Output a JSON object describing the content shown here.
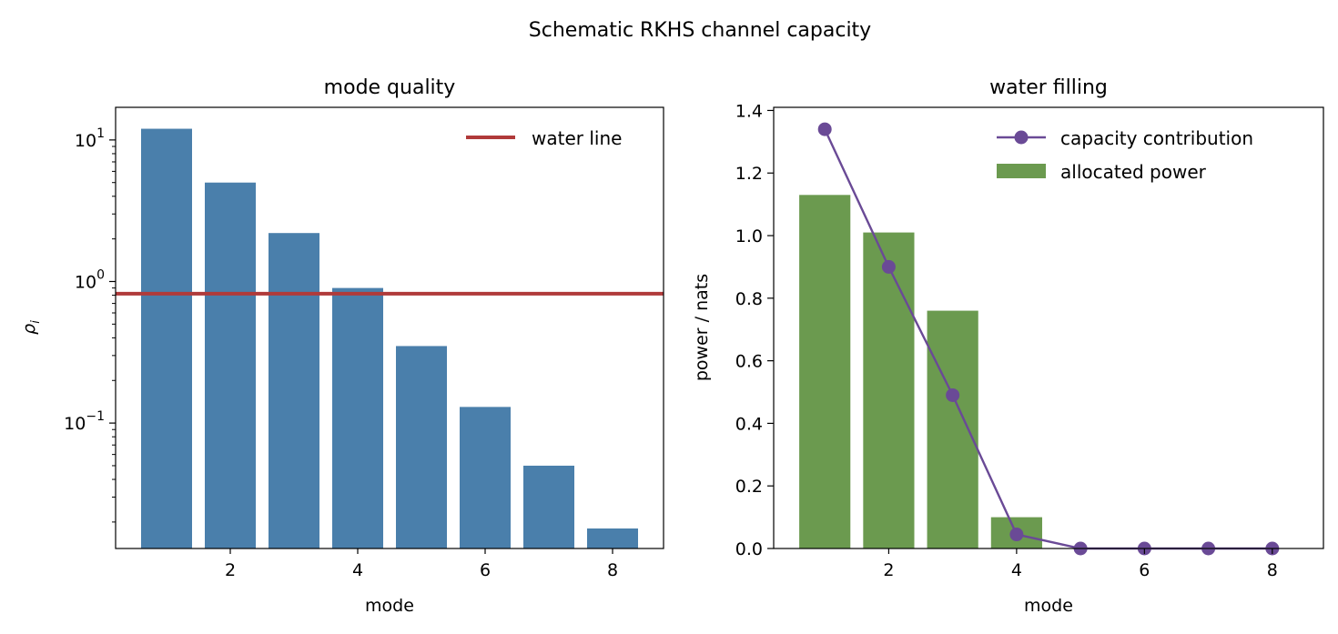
{
  "suptitle": "Schematic RKHS channel capacity",
  "colors": {
    "bar_left": "#4a7fab",
    "water_line": "#b03a3a",
    "bar_right": "#6b9a4f",
    "capacity_line": "#6a4a96"
  },
  "chart_data": [
    {
      "type": "bar",
      "title": "mode quality",
      "xlabel": "mode",
      "ylabel": "ρ",
      "ylabel_subscript": "i",
      "yscale": "log",
      "xlim": [
        0.2,
        8.8
      ],
      "ylim": [
        0.013,
        17
      ],
      "x": [
        1,
        2,
        3,
        4,
        5,
        6,
        7,
        8
      ],
      "values": [
        12,
        5,
        2.2,
        0.9,
        0.35,
        0.13,
        0.05,
        0.018
      ],
      "xticks": [
        2,
        4,
        6,
        8
      ],
      "ytick_values": [
        0.1,
        1,
        10
      ],
      "ytick_labels": [
        {
          "base": "10",
          "exp": "−1"
        },
        {
          "base": "10",
          "exp": "0"
        },
        {
          "base": "10",
          "exp": "1"
        }
      ],
      "hline": {
        "name": "water line",
        "value": 0.82
      },
      "legend": {
        "position": "upper right",
        "entries": [
          "water line"
        ]
      },
      "grid": false
    },
    {
      "type": "bar+line",
      "title": "water filling",
      "xlabel": "mode",
      "ylabel": "power / nats",
      "yscale": "linear",
      "xlim": [
        0.2,
        8.8
      ],
      "ylim": [
        0,
        1.41
      ],
      "x": [
        1,
        2,
        3,
        4,
        5,
        6,
        7,
        8
      ],
      "series": [
        {
          "name": "allocated power",
          "kind": "bar",
          "values": [
            1.13,
            1.01,
            0.76,
            0.1,
            0,
            0,
            0,
            0
          ]
        },
        {
          "name": "capacity contribution",
          "kind": "line",
          "values": [
            1.34,
            0.9,
            0.49,
            0.045,
            0,
            0,
            0,
            0
          ]
        }
      ],
      "xticks": [
        2,
        4,
        6,
        8
      ],
      "yticks": [
        0.0,
        0.2,
        0.4,
        0.6,
        0.8,
        1.0,
        1.2,
        1.4
      ],
      "ytick_labels": [
        "0.0",
        "0.2",
        "0.4",
        "0.6",
        "0.8",
        "1.0",
        "1.2",
        "1.4"
      ],
      "legend": {
        "position": "upper right",
        "entries": [
          "capacity contribution",
          "allocated power"
        ]
      },
      "grid": false
    }
  ]
}
